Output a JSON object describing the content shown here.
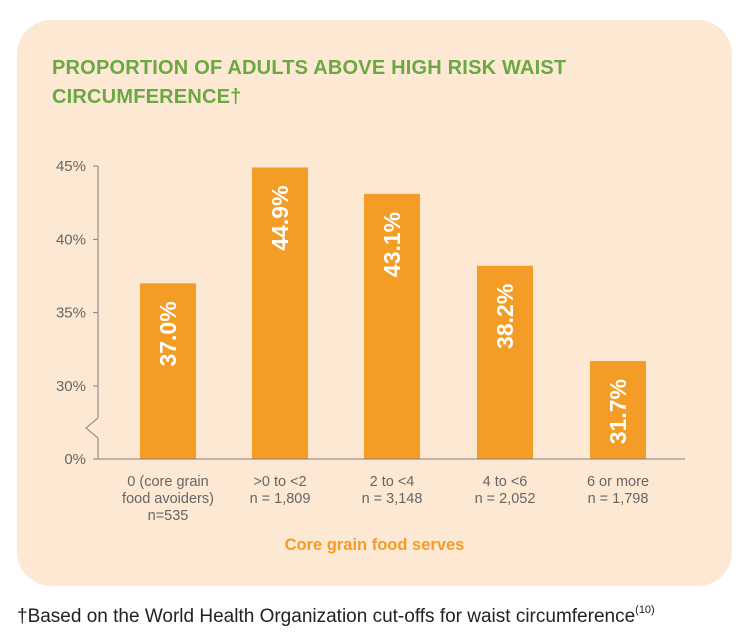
{
  "chart_data": {
    "type": "bar",
    "title": "PROPORTION OF ADULTS ABOVE HIGH RISK WAIST CIRCUMFERENCE†",
    "xlabel": "Core grain food serves",
    "ylabel": "",
    "y_ticks": [
      "0%",
      "30%",
      "35%",
      "40%",
      "45%"
    ],
    "ylim": [
      25,
      45
    ],
    "axis_break": true,
    "bar_color": "#f39c26",
    "categories": [
      {
        "lines": [
          "0 (core grain",
          "food avoiders)",
          "n=535"
        ]
      },
      {
        "lines": [
          ">0 to <2",
          "n = 1,809"
        ]
      },
      {
        "lines": [
          "2 to <4",
          "n = 3,148"
        ]
      },
      {
        "lines": [
          "4 to <6",
          "n = 2,052"
        ]
      },
      {
        "lines": [
          "6 or more",
          "n = 1,798"
        ]
      }
    ],
    "values": [
      37.0,
      44.9,
      43.1,
      38.2,
      31.7
    ],
    "labels": [
      "37.0%",
      "44.9%",
      "43.1%",
      "38.2%",
      "31.7%"
    ]
  },
  "footnote": {
    "text": "†Based on the World Health Organization cut-offs for waist circumference",
    "ref": "(10)"
  }
}
